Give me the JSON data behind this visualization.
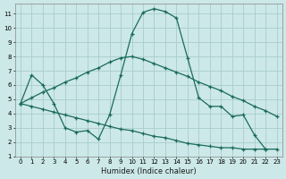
{
  "xlabel": "Humidex (Indice chaleur)",
  "bg_color": "#cce8e8",
  "grid_color": "#aacccc",
  "line_color": "#1a6b5a",
  "xlim": [
    -0.5,
    23.5
  ],
  "ylim": [
    1,
    11.7
  ],
  "xticks": [
    0,
    1,
    2,
    3,
    4,
    5,
    6,
    7,
    8,
    9,
    10,
    11,
    12,
    13,
    14,
    15,
    16,
    17,
    18,
    19,
    20,
    21,
    22,
    23
  ],
  "yticks": [
    1,
    2,
    3,
    4,
    5,
    6,
    7,
    8,
    9,
    10,
    11
  ],
  "line1_x": [
    0,
    1,
    2,
    3,
    4,
    5,
    6,
    7,
    8,
    9,
    10,
    11,
    12,
    13,
    14,
    15,
    16,
    17,
    18,
    19,
    20,
    21,
    22
  ],
  "line1_y": [
    4.7,
    6.7,
    6.0,
    4.7,
    3.0,
    2.7,
    2.8,
    2.2,
    3.9,
    6.7,
    9.6,
    11.1,
    11.35,
    11.15,
    10.7,
    7.9,
    5.1,
    4.5,
    4.5,
    3.8,
    3.9,
    2.5,
    1.5
  ],
  "line2_x": [
    0,
    1,
    2,
    3,
    4,
    5,
    6,
    7,
    8,
    9,
    10,
    11,
    12,
    13,
    14,
    15,
    16,
    17,
    18,
    19,
    20,
    21,
    22,
    23
  ],
  "line2_y": [
    4.7,
    5.1,
    5.5,
    5.8,
    6.2,
    6.5,
    6.9,
    7.2,
    7.6,
    7.9,
    8.0,
    7.8,
    7.5,
    7.2,
    6.9,
    6.6,
    6.2,
    5.9,
    5.6,
    5.2,
    4.9,
    4.5,
    4.2,
    3.8
  ],
  "line3_x": [
    0,
    1,
    2,
    3,
    4,
    5,
    6,
    7,
    8,
    9,
    10,
    11,
    12,
    13,
    14,
    15,
    16,
    17,
    18,
    19,
    20,
    21,
    22,
    23
  ],
  "line3_y": [
    4.7,
    4.5,
    4.3,
    4.1,
    3.9,
    3.7,
    3.5,
    3.3,
    3.1,
    2.9,
    2.8,
    2.6,
    2.4,
    2.3,
    2.1,
    1.9,
    1.8,
    1.7,
    1.6,
    1.6,
    1.5,
    1.5,
    1.5,
    1.5
  ]
}
